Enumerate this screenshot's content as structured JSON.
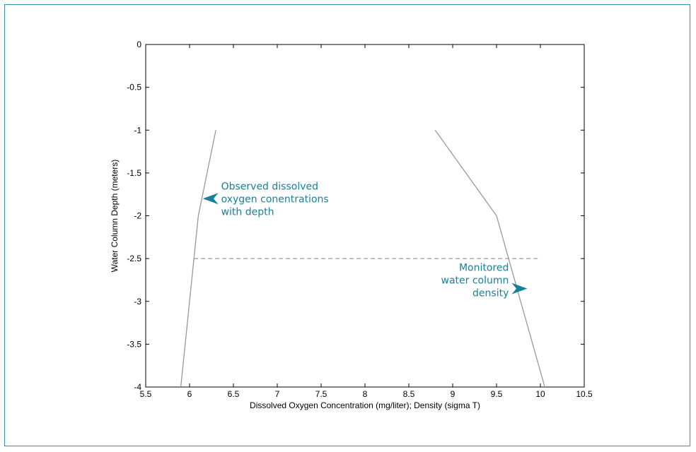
{
  "chart_data": {
    "type": "line",
    "title": "",
    "xlabel": "Dissolved Oxygen Concentration (mg/liter); Density (sigma T)",
    "ylabel": "Water Column Depth (meters)",
    "xlim": [
      5.5,
      10.5
    ],
    "ylim": [
      -4,
      0
    ],
    "xticks": [
      5.5,
      6,
      6.5,
      7,
      7.5,
      8,
      8.5,
      9,
      9.5,
      10,
      10.5
    ],
    "xtick_labels": [
      "5.5",
      "6",
      "6.5",
      "7",
      "7.5",
      "8",
      "8.5",
      "9",
      "9.5",
      "10",
      "10.5"
    ],
    "yticks": [
      0,
      -0.5,
      -1,
      -1.5,
      -2,
      -2.5,
      -3,
      -3.5,
      -4
    ],
    "ytick_labels": [
      "0",
      "-0.5",
      "-1",
      "-1.5",
      "-2",
      "-2.5",
      "-3",
      "-3.5",
      "-4"
    ],
    "grid": false,
    "line_color": "#999999",
    "accent_color": "#1a7f99",
    "series": [
      {
        "x": [
          6.3,
          6.1,
          5.9
        ],
        "y": [
          -1,
          -2,
          -4
        ]
      },
      {
        "x": [
          8.8,
          9.5,
          10.05
        ],
        "y": [
          -1,
          -2,
          -4
        ]
      }
    ],
    "reference_line": {
      "x": [
        6.05,
        10.0
      ],
      "y": -2.5,
      "style": "dashed"
    },
    "annotations": [
      {
        "lines": [
          "Observed dissolved",
          "oxygen conentrations",
          "with depth"
        ],
        "target": {
          "x": 6.15,
          "y": -1.8
        },
        "arrow_direction": "left",
        "align": "start"
      },
      {
        "lines": [
          "Monitored",
          "water column",
          "density"
        ],
        "target": {
          "x": 9.85,
          "y": -2.85
        },
        "arrow_direction": "right",
        "align": "end"
      }
    ]
  }
}
